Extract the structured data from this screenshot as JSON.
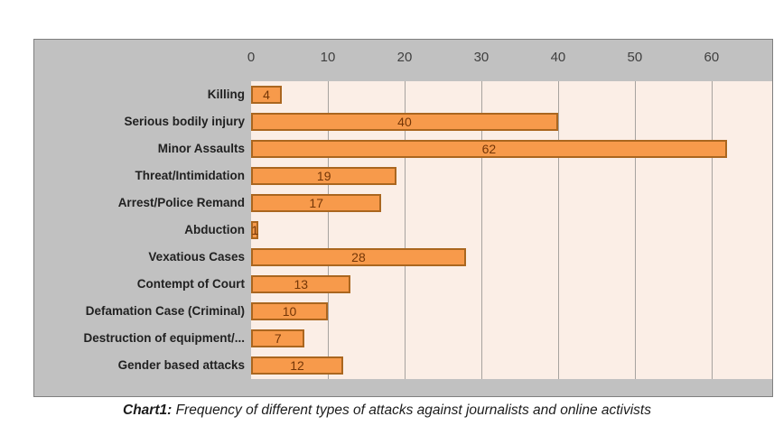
{
  "chart_data": {
    "type": "bar",
    "orientation": "horizontal",
    "categories": [
      "Killing",
      "Serious bodily injury",
      "Minor Assaults",
      "Threat/Intimidation",
      "Arrest/Police Remand",
      "Abduction",
      "Vexatious Cases",
      "Contempt of Court",
      "Defamation Case (Criminal)",
      "Destruction of equipment/...",
      "Gender based attacks"
    ],
    "values": [
      4,
      40,
      62,
      19,
      17,
      1,
      28,
      13,
      10,
      7,
      12
    ],
    "x_ticks": [
      0,
      10,
      20,
      30,
      40,
      50,
      60
    ],
    "x_axis_visible_max": 67.9,
    "grid": "vertical-only",
    "legend": "none",
    "title": "",
    "xlabel": "",
    "ylabel": "",
    "colors": {
      "bar_fill": "#F79A4B",
      "bar_border": "#AA661F",
      "value_label": "#743607",
      "plot_background": "#FBEEE6",
      "chart_background": "#C1C1C1",
      "chart_border": "#7F7F7F",
      "gridline": "#A7A39F"
    }
  },
  "caption": {
    "prefix": "Chart1:",
    "text": " Frequency of different types of attacks against journalists and online activists"
  }
}
